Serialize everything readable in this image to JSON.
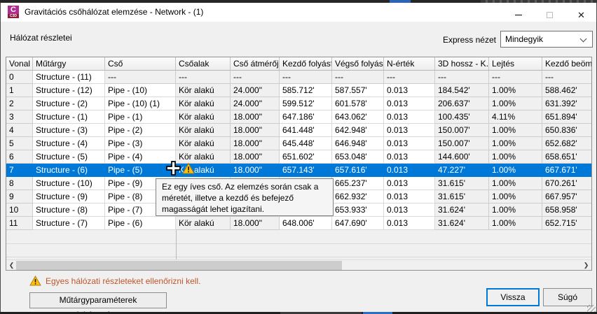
{
  "window": {
    "title": "Gravitációs csőhálózat elemzése - Network - (1)",
    "app_icon_top": "C",
    "app_icon_bottom": "C3D"
  },
  "header": {
    "section_label": "Hálózat részletei",
    "express_label": "Express nézet",
    "express_value": "Mindegyik"
  },
  "table": {
    "columns": [
      "Vonal",
      "Műtárgy",
      "Cső",
      "Csőalak",
      "Cső átmérője",
      "Kezdő folyásf...",
      "Végső  folyás...",
      "N-érték",
      "3D hossz - K...",
      "Lejtés",
      "Kezdő beöml"
    ],
    "rows": [
      [
        "0",
        "Structure - (11)",
        "---",
        "---",
        "---",
        "---",
        "---",
        "---",
        "---",
        "---",
        "---"
      ],
      [
        "1",
        "Structure - (12)",
        "Pipe - (10)",
        "Kör alakú",
        "24.000\"",
        "585.712'",
        "587.557'",
        "0.013",
        "184.542'",
        "1.00%",
        "588.462'"
      ],
      [
        "2",
        "Structure - (2)",
        "Pipe - (10) (1)",
        "Kör alakú",
        "24.000\"",
        "599.512'",
        "601.578'",
        "0.013",
        "206.637'",
        "1.00%",
        "631.392'"
      ],
      [
        "3",
        "Structure - (1)",
        "Pipe - (1)",
        "Kör alakú",
        "18.000\"",
        "647.186'",
        "643.062'",
        "0.013",
        "100.435'",
        "4.11%",
        "651.894'"
      ],
      [
        "4",
        "Structure - (3)",
        "Pipe - (2)",
        "Kör alakú",
        "18.000\"",
        "641.448'",
        "642.948'",
        "0.013",
        "150.007'",
        "1.00%",
        "650.836'"
      ],
      [
        "5",
        "Structure - (4)",
        "Pipe - (3)",
        "Kör alakú",
        "18.000\"",
        "645.448'",
        "646.948'",
        "0.013",
        "150.007'",
        "1.00%",
        "652.682'"
      ],
      [
        "6",
        "Structure - (5)",
        "Pipe - (4)",
        "Kör alakú",
        "18.000\"",
        "651.602'",
        "653.048'",
        "0.013",
        "144.600'",
        "1.00%",
        "658.651'"
      ],
      [
        "7",
        "Structure - (6)",
        "Pipe - (5)",
        "Kör alakú",
        "18.000\"",
        "657.143'",
        "657.616'",
        "0.013",
        "47.227'",
        "1.00%",
        "667.671'"
      ],
      [
        "8",
        "Structure - (10)",
        "Pipe - (9)",
        "",
        "",
        "",
        "665.237'",
        "0.013",
        "31.615'",
        "1.00%",
        "670.261'"
      ],
      [
        "9",
        "Structure - (9)",
        "Pipe - (8)",
        "",
        "",
        "",
        "662.932'",
        "0.013",
        "31.615'",
        "1.00%",
        "667.957'"
      ],
      [
        "10",
        "Structure - (8)",
        "Pipe - (7)",
        "",
        "",
        "",
        "653.933'",
        "0.013",
        "31.624'",
        "1.00%",
        "658.958'"
      ],
      [
        "11",
        "Structure - (7)",
        "Pipe - (6)",
        "Kör alakú",
        "18.000\"",
        "648.006'",
        "647.690'",
        "0.013",
        "31.624'",
        "1.00%",
        "652.715'"
      ]
    ],
    "selected_row": 7
  },
  "tooltip": {
    "text": "Ez egy íves cső. Az elemzés során csak a méretét, illetve a kezdő és befejező magasságát lehet igazítani."
  },
  "warning": {
    "text": "Egyes hálózati részleteket ellenőrizni kell."
  },
  "buttons": {
    "map_params": "Műtárgyparaméterek leképezése",
    "back": "Vissza",
    "help": "Súgó"
  },
  "scrollbar": {
    "left_arrow": "❮",
    "right_arrow": "❯"
  },
  "colors": {
    "selection_blue": "#0078d7",
    "warning_text": "#c0562b",
    "warning_icon_fill": "#fdc116",
    "icon_magenta": "#b02c8f",
    "icon_maroon": "#8f1a3a"
  }
}
